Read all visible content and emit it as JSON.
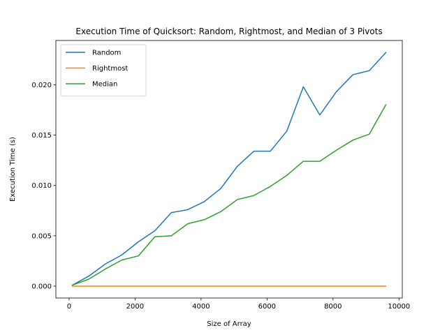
{
  "chart_data": {
    "type": "line",
    "title": "Execution Time of Quicksort: Random, Rightmost, and Median of 3 Pivots",
    "xlabel": "Size of Array",
    "ylabel": "Execution Time (s)",
    "xlim": [
      -400,
      10100
    ],
    "ylim": [
      -0.00118,
      0.0244
    ],
    "xticks": [
      0,
      2000,
      4000,
      6000,
      8000,
      10000
    ],
    "xtick_labels": [
      "0",
      "2000",
      "4000",
      "6000",
      "8000",
      "10000"
    ],
    "yticks": [
      0.0,
      0.005,
      0.01,
      0.015,
      0.02
    ],
    "ytick_labels": [
      "0.000",
      "0.005",
      "0.010",
      "0.015",
      "0.020"
    ],
    "grid": false,
    "legend_position": "top-left",
    "x": [
      100,
      600,
      1100,
      1600,
      2100,
      2600,
      3100,
      3600,
      4100,
      4600,
      5100,
      5600,
      6100,
      6600,
      7100,
      7600,
      8100,
      8600,
      9100,
      9600
    ],
    "series": [
      {
        "name": "Random",
        "color": "#1f77b4",
        "values": [
          0.0001,
          0.001,
          0.0022,
          0.0031,
          0.0044,
          0.0055,
          0.0073,
          0.0076,
          0.0084,
          0.0097,
          0.0119,
          0.0134,
          0.0134,
          0.0154,
          0.0198,
          0.017,
          0.0193,
          0.021,
          0.0214,
          0.0232
        ]
      },
      {
        "name": "Rightmost",
        "color": "#ff7f0e",
        "values": [
          0,
          0,
          0,
          0,
          0,
          0,
          0,
          0,
          0,
          0,
          0,
          0,
          0,
          0,
          0,
          0,
          0,
          0,
          0,
          0
        ]
      },
      {
        "name": "Median",
        "color": "#2ca02c",
        "values": [
          0.0001,
          0.0007,
          0.0017,
          0.0026,
          0.003,
          0.0049,
          0.005,
          0.0062,
          0.0066,
          0.0074,
          0.0086,
          0.009,
          0.0099,
          0.011,
          0.0124,
          0.0124,
          0.0135,
          0.0145,
          0.0151,
          0.018
        ]
      }
    ]
  }
}
